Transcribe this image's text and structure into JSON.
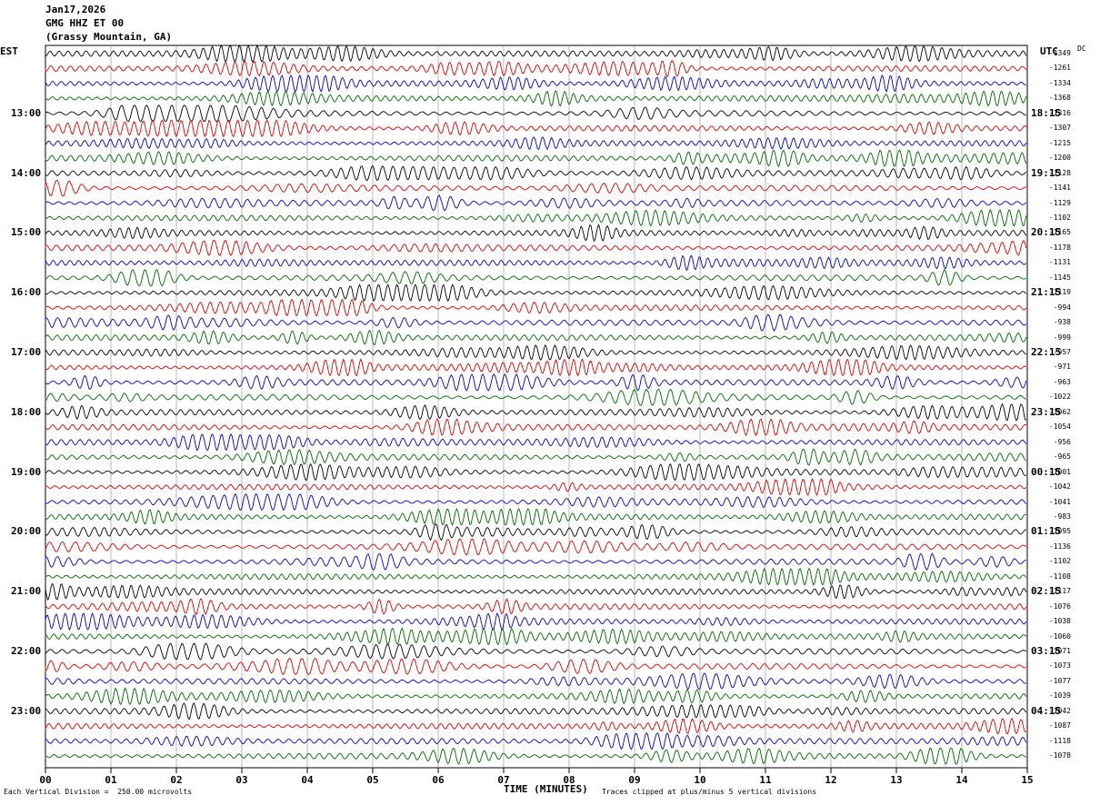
{
  "header": {
    "date": "Jan17,2026",
    "station": "GMG HHZ ET 00",
    "location": "(Grassy Mountain, GA)"
  },
  "left_axis": {
    "label": "EST"
  },
  "right_axis": {
    "label": "UTC",
    "dc_label": "DC"
  },
  "footer": {
    "scale_note": "Each Vertical Division =  250.00 microvolts",
    "xlabel": "TIME (MINUTES)",
    "clip_note": "Traces clipped at plus/minus 5 vertical divisions"
  },
  "chart_data": {
    "type": "line",
    "subtype": "helicorder",
    "xlabel": "TIME (MINUTES)",
    "xlim": [
      0,
      15
    ],
    "x_ticks": [
      "00",
      "01",
      "02",
      "03",
      "04",
      "05",
      "06",
      "07",
      "08",
      "09",
      "10",
      "11",
      "12",
      "13",
      "14",
      "15"
    ],
    "trace_colors": [
      "#000000",
      "#dd0000",
      "#0000cc",
      "#006600"
    ],
    "grid": true,
    "rows_per_hour": 4,
    "est_hour_labels": [
      "13:00",
      "14:00",
      "15:00",
      "16:00",
      "17:00",
      "18:00",
      "19:00",
      "20:00",
      "21:00",
      "22:00",
      "23:00"
    ],
    "utc_hour_labels": [
      "18:15",
      "19:15",
      "20:15",
      "21:15",
      "22:15",
      "23:15",
      "00:15",
      "01:15",
      "02:15",
      "03:15",
      "04:15"
    ],
    "dc_offsets": [
      "-1349",
      "-1261",
      "-1334",
      "-1368",
      "-1316",
      "-1307",
      "-1215",
      "-1200",
      "-1128",
      "-1141",
      "-1129",
      "-1102",
      "-1165",
      "-1178",
      "-1131",
      "-1145",
      "-1119",
      "-994",
      "-938",
      "-999",
      "-957",
      "-971",
      "-963",
      "-1022",
      "-1062",
      "-1054",
      "-956",
      "-965",
      "-1001",
      "-1042",
      "-1041",
      "-983",
      "-1095",
      "-1136",
      "-1102",
      "-1108",
      "-1117",
      "-1076",
      "-1038",
      "-1060",
      "-1071",
      "-1073",
      "-1077",
      "-1039",
      "-1042",
      "-1087",
      "-1118",
      "-1078"
    ]
  }
}
